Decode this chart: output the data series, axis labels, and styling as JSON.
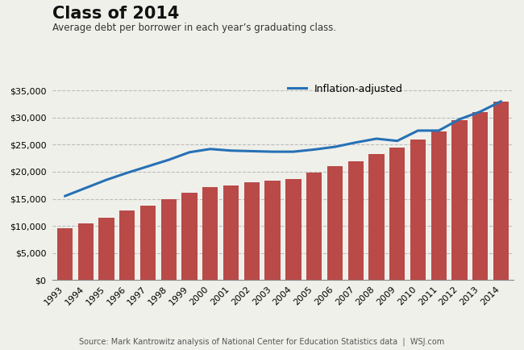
{
  "title": "Class of 2014",
  "subtitle": "Average debt per borrower in each year’s graduating class.",
  "source": "Source: Mark Kantrowitz analysis of National Center for Education Statistics data  |  WSJ.com",
  "years": [
    1993,
    1994,
    1995,
    1996,
    1997,
    1998,
    1999,
    2000,
    2001,
    2002,
    2003,
    2004,
    2005,
    2006,
    2007,
    2008,
    2009,
    2010,
    2011,
    2012,
    2013,
    2014
  ],
  "bar_values": [
    9500,
    10500,
    11500,
    12800,
    13700,
    14900,
    16100,
    17200,
    17500,
    18000,
    18300,
    18600,
    19800,
    21000,
    22000,
    23300,
    24500,
    26000,
    27500,
    29500,
    31000,
    33000
  ],
  "line_values": [
    15500,
    17000,
    18500,
    19800,
    21000,
    22200,
    23600,
    24200,
    23900,
    23800,
    23700,
    23700,
    24100,
    24600,
    25400,
    26100,
    25700,
    27600,
    27600,
    29700,
    31100,
    33000
  ],
  "bar_color": "#b94a48",
  "line_color": "#2671b5",
  "background_color": "#f0f0eb",
  "ylim": [
    0,
    37500
  ],
  "yticks": [
    0,
    5000,
    10000,
    15000,
    20000,
    25000,
    30000,
    35000
  ],
  "legend_label": "Inflation-adjusted",
  "grid_color": "#bbbbbb",
  "title_color": "#111111",
  "subtitle_color": "#333333",
  "source_color": "#555555"
}
